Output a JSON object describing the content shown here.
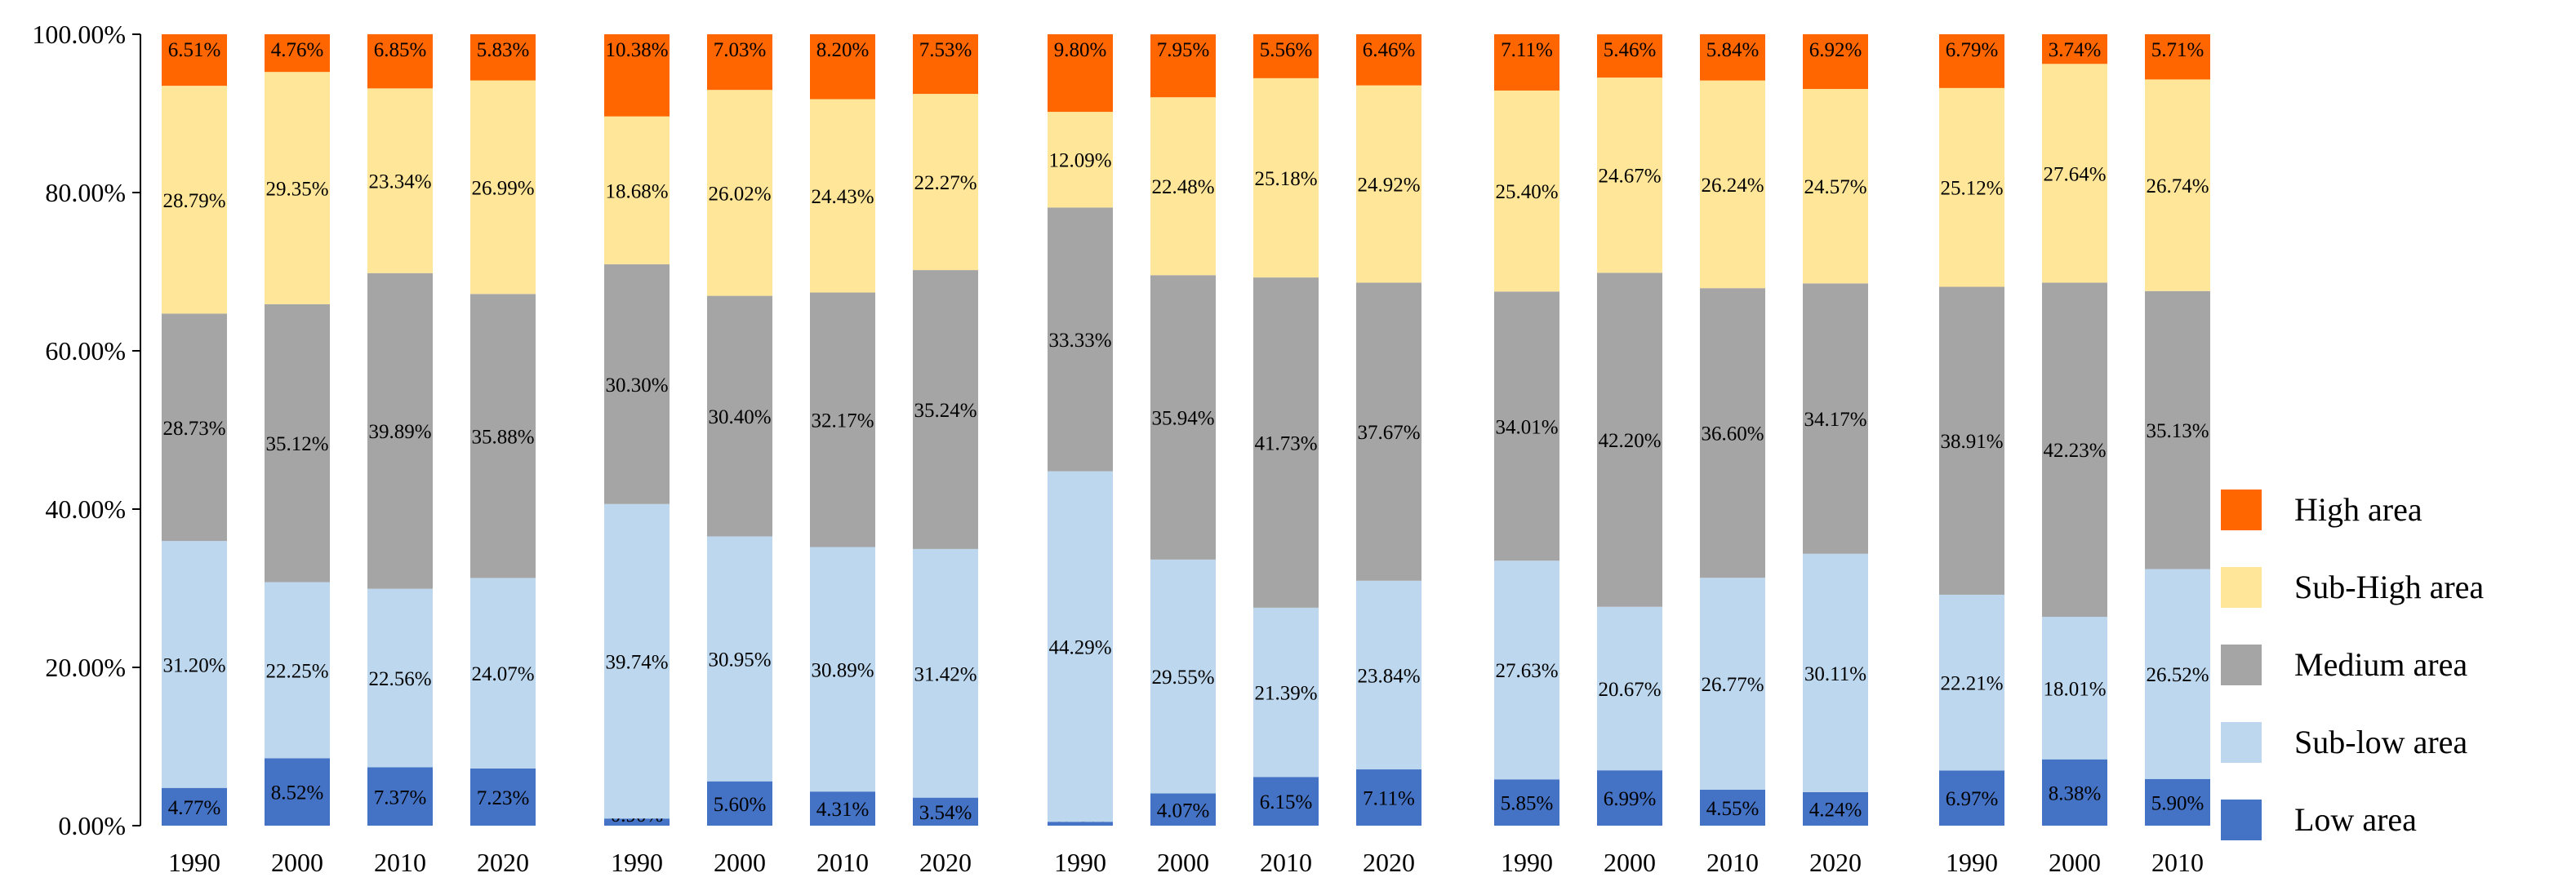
{
  "chart_data": {
    "type": "bar",
    "stacked": true,
    "percent_stacked": true,
    "x": [
      "1990",
      "2000",
      "2010",
      "2020",
      "1990",
      "2000",
      "2010",
      "2020",
      "1990",
      "2000",
      "2010",
      "2020",
      "1990",
      "2000",
      "2010",
      "2020",
      "1990",
      "2000",
      "2010"
    ],
    "groups": [
      4,
      4,
      4,
      4,
      3
    ],
    "ylim": [
      0,
      100
    ],
    "yticks": [
      "0.00%",
      "20.00%",
      "40.00%",
      "60.00%",
      "80.00%",
      "100.00%"
    ],
    "series": [
      {
        "name": "Low area",
        "color": "#4472c4",
        "values": [
          4.77,
          8.52,
          7.37,
          7.23,
          0.9,
          5.6,
          4.31,
          3.54,
          0.49,
          4.07,
          6.15,
          7.11,
          5.85,
          6.99,
          4.55,
          4.24,
          6.97,
          8.38,
          5.9
        ],
        "labels": [
          "4.77%",
          "8.52%",
          "7.37%",
          "7.23%",
          "0.90%",
          "5.60%",
          "4.31%",
          "3.54%",
          "0.49%",
          "4.07%",
          "6.15%",
          "7.11%",
          "5.85%",
          "6.99%",
          "4.55%",
          "4.24%",
          "6.97%",
          "8.38%",
          "5.90%"
        ]
      },
      {
        "name": "Sub-low area",
        "color": "#bdd7ee",
        "values": [
          31.2,
          22.25,
          22.56,
          24.07,
          39.74,
          30.95,
          30.89,
          31.42,
          44.29,
          29.55,
          21.39,
          23.84,
          27.63,
          20.67,
          26.77,
          30.11,
          22.21,
          18.01,
          26.52
        ],
        "labels": [
          "31.20%",
          "22.25%",
          "22.56%",
          "24.07%",
          "39.74%",
          "30.95%",
          "30.89%",
          "31.42%",
          "44.29%",
          "29.55%",
          "21.39%",
          "23.84%",
          "27.63%",
          "20.67%",
          "26.77%",
          "30.11%",
          "22.21%",
          "18.01%",
          "26.52%"
        ]
      },
      {
        "name": "Medium area",
        "color": "#a5a5a5",
        "values": [
          28.73,
          35.12,
          39.89,
          35.88,
          30.3,
          30.4,
          32.17,
          35.24,
          33.33,
          35.94,
          41.73,
          37.67,
          34.01,
          42.2,
          36.6,
          34.17,
          38.91,
          42.23,
          35.13
        ],
        "labels": [
          "28.73%",
          "35.12%",
          "39.89%",
          "35.88%",
          "30.30%",
          "30.40%",
          "32.17%",
          "35.24%",
          "33.33%",
          "35.94%",
          "41.73%",
          "37.67%",
          "34.01%",
          "42.20%",
          "36.60%",
          "34.17%",
          "38.91%",
          "42.23%",
          "35.13%"
        ]
      },
      {
        "name": "Sub-High area",
        "color": "#ffe699",
        "values": [
          28.79,
          29.35,
          23.34,
          26.99,
          18.68,
          26.02,
          24.43,
          22.27,
          12.09,
          22.48,
          25.18,
          24.92,
          25.4,
          24.67,
          26.24,
          24.57,
          25.12,
          27.64,
          26.74
        ],
        "labels": [
          "28.79%",
          "29.35%",
          "23.34%",
          "26.99%",
          "18.68%",
          "26.02%",
          "24.43%",
          "22.27%",
          "12.09%",
          "22.48%",
          "25.18%",
          "24.92%",
          "25.40%",
          "24.67%",
          "26.24%",
          "24.57%",
          "25.12%",
          "27.64%",
          "26.74%"
        ]
      },
      {
        "name": "High area",
        "color": "#ff6600",
        "values": [
          6.51,
          4.76,
          6.85,
          5.83,
          10.38,
          7.03,
          8.2,
          7.53,
          9.8,
          7.95,
          5.56,
          6.46,
          7.11,
          5.46,
          5.84,
          6.92,
          6.79,
          3.74,
          5.71
        ],
        "labels": [
          "6.51%",
          "4.76%",
          "6.85%",
          "5.83%",
          "10.38%",
          "7.03%",
          "8.20%",
          "7.53%",
          "9.80%",
          "7.95%",
          "5.56%",
          "6.46%",
          "7.11%",
          "5.46%",
          "5.84%",
          "6.92%",
          "6.79%",
          "3.74%",
          "5.71%"
        ]
      }
    ],
    "legend": {
      "placement": "right",
      "order": [
        "High area",
        "Sub-High area",
        "Medium area",
        "Sub-low area",
        "Low area"
      ]
    },
    "grid": false
  }
}
